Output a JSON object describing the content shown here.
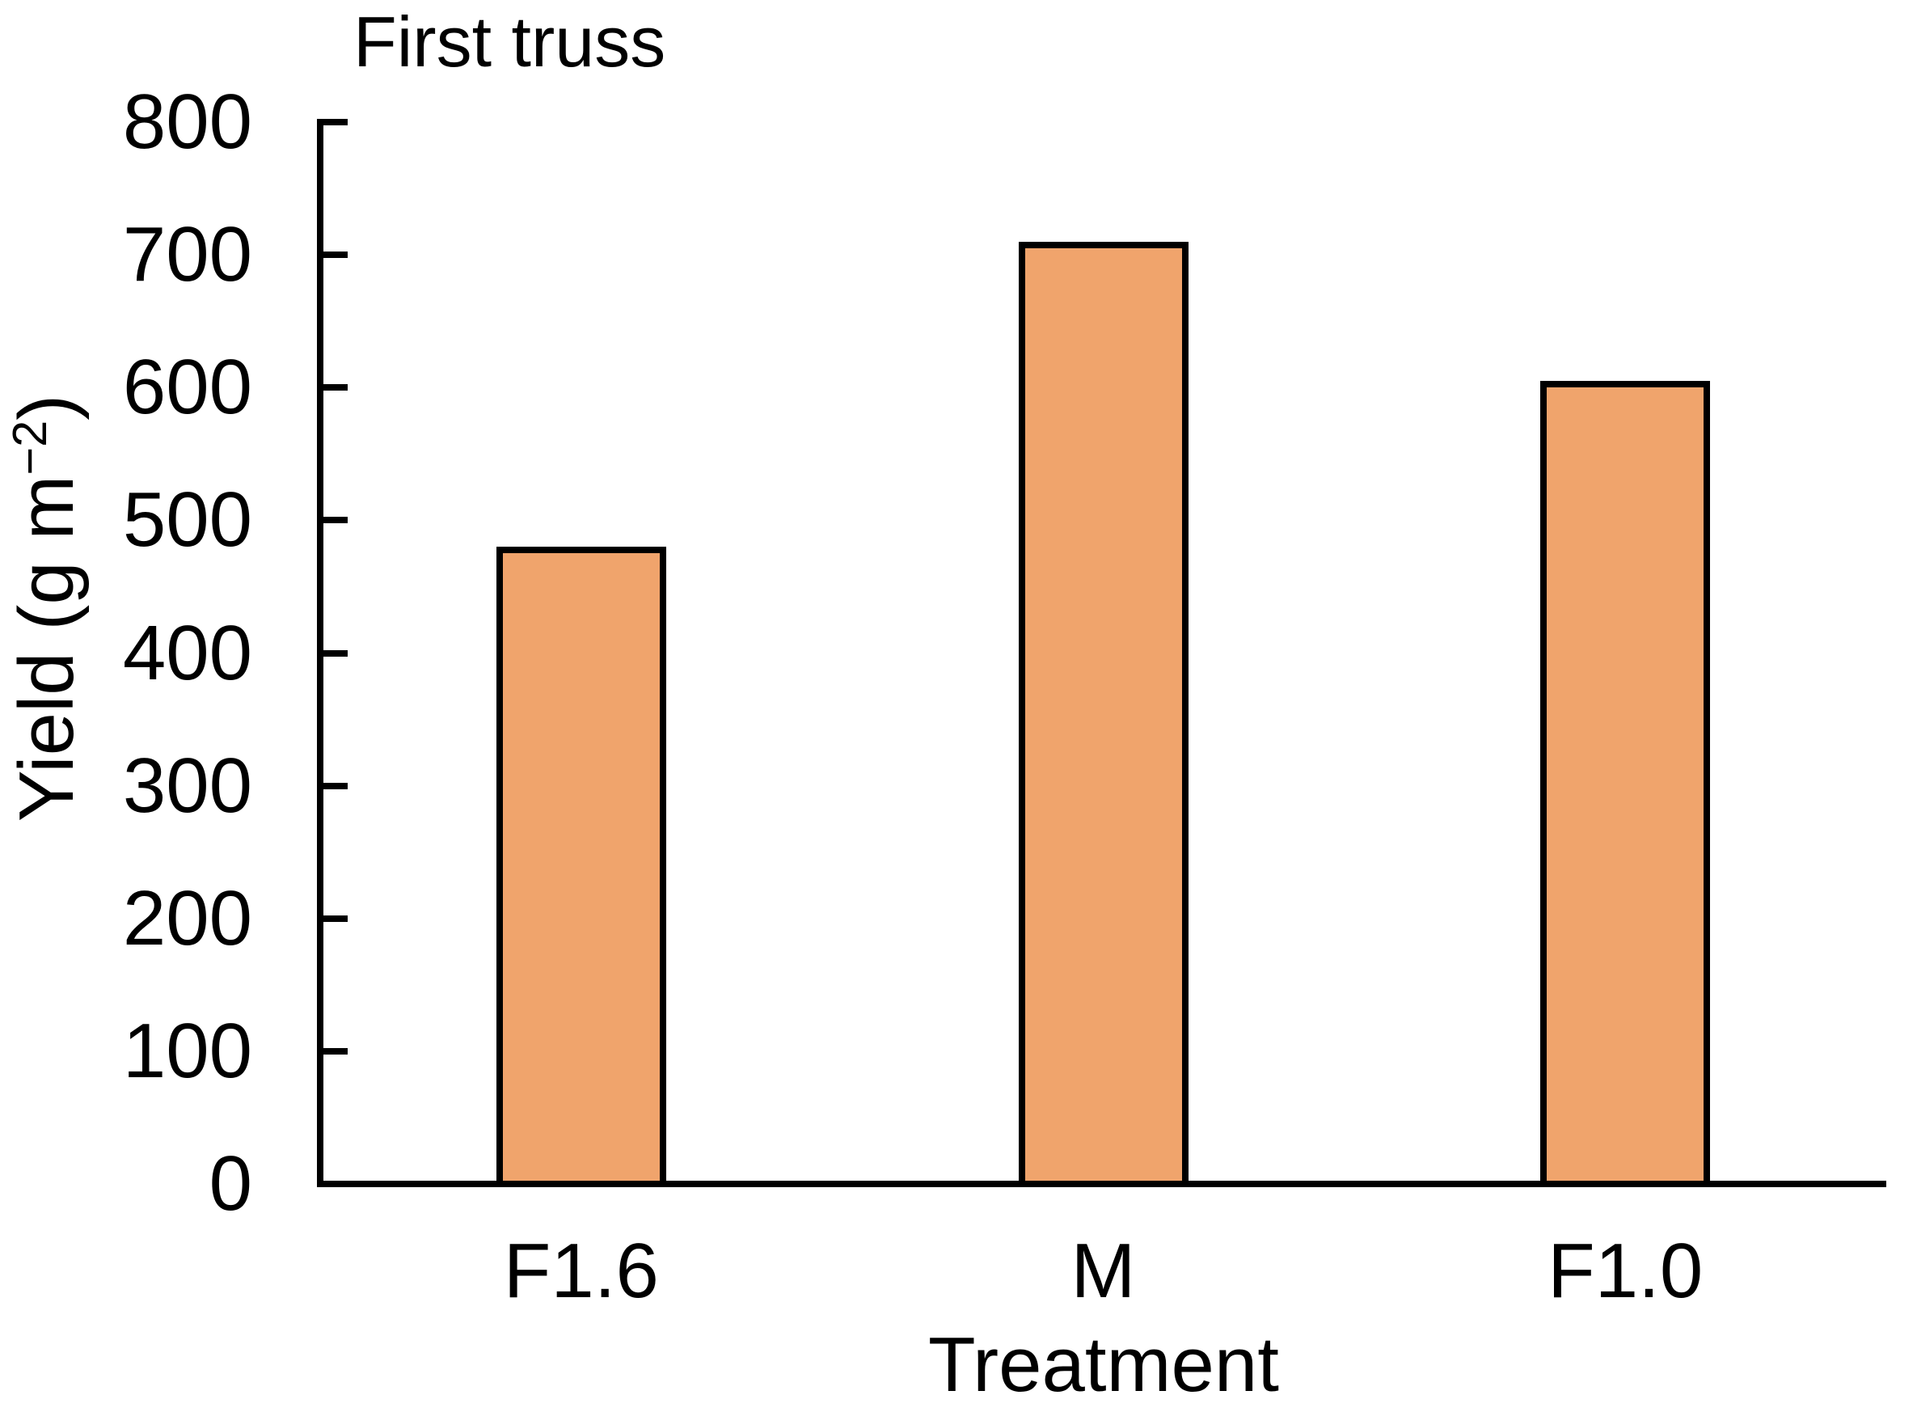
{
  "figure": {
    "background": "#FFFFFF"
  },
  "chart_data": {
    "type": "bar",
    "title": "First truss",
    "categories": [
      "F1.6",
      "M",
      "F1.0"
    ],
    "values": [
      480,
      710,
      605
    ],
    "xlabel": "Treatment",
    "ylabel": "Yield (g m⁻²)",
    "ylabel_parts": {
      "prefix": "Yield (g m",
      "superscript": "−2",
      "suffix": ")"
    },
    "ylim": [
      0,
      800
    ],
    "yticks": [
      0,
      100,
      200,
      300,
      400,
      500,
      600,
      700,
      800
    ],
    "grid": false,
    "legend_position": "none",
    "tick_direction": "in",
    "bar_fill_color": "#F0A46C",
    "bar_border_color": "#000000",
    "axis_color": "#000000",
    "text_color": "#000000"
  }
}
